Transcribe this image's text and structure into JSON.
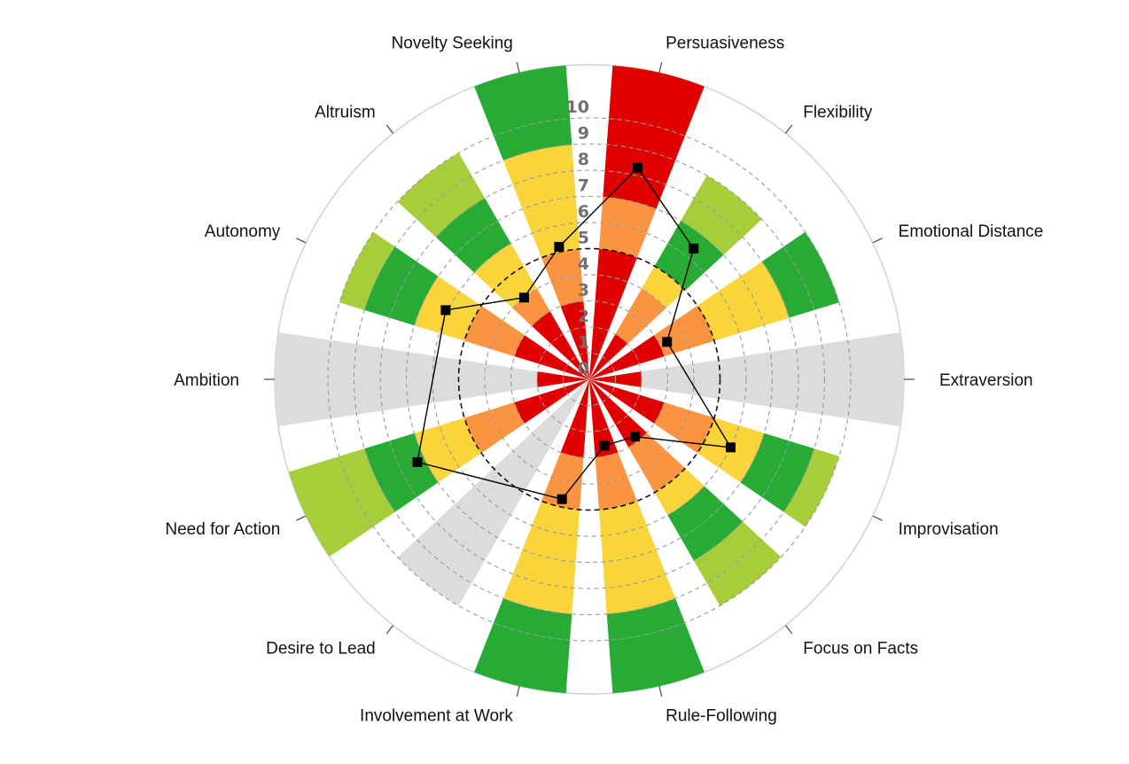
{
  "chart_data": {
    "type": "polar-bar",
    "title": "",
    "radial_axis": {
      "min": 0,
      "max": 10,
      "tick_labels": [
        "0",
        "1",
        "2",
        "3",
        "4",
        "5",
        "6",
        "7",
        "8",
        "9",
        "10"
      ],
      "reference_circle": 5,
      "grid": "dashed"
    },
    "band_colors": {
      "red": "#e00000",
      "orange": "#fa9440",
      "yellow": "#f9d43b",
      "green": "#27ab34",
      "lightgreen": "#a6cd3a",
      "gray": "#dcdcdc",
      "white": "#ffffff"
    },
    "categories": [
      {
        "name": "Persuasiveness",
        "value": 8.3,
        "bands": [
          "red",
          "red",
          "red",
          "red",
          "red",
          "orange",
          "orange",
          "red",
          "red",
          "red",
          "red"
        ]
      },
      {
        "name": "Flexibility",
        "value": 6.4,
        "bands": [
          "red",
          "red",
          "orange",
          "orange",
          "yellow",
          "green",
          "green",
          "lightgreen",
          "lightgreen",
          "white",
          "white"
        ]
      },
      {
        "name": "Emotional Distance",
        "value": 3.3,
        "bands": [
          "red",
          "red",
          "red",
          "orange",
          "orange",
          "yellow",
          "yellow",
          "yellow",
          "green",
          "green",
          "white"
        ]
      },
      {
        "name": "Extraversion",
        "value": 0,
        "bands": [
          "red",
          "red",
          "gray",
          "gray",
          "gray",
          "gray",
          "gray",
          "gray",
          "gray",
          "gray",
          "gray"
        ]
      },
      {
        "name": "Improvisation",
        "value": 6.0,
        "bands": [
          "red",
          "red",
          "red",
          "orange",
          "orange",
          "yellow",
          "yellow",
          "green",
          "green",
          "lightgreen",
          "white"
        ]
      },
      {
        "name": "Focus on Facts",
        "value": 2.8,
        "bands": [
          "red",
          "red",
          "red",
          "orange",
          "orange",
          "yellow",
          "green",
          "green",
          "lightgreen",
          "lightgreen",
          "white"
        ]
      },
      {
        "name": "Rule-Following",
        "value": 2.6,
        "bands": [
          "red",
          "red",
          "red",
          "orange",
          "orange",
          "yellow",
          "yellow",
          "yellow",
          "yellow",
          "green",
          "green"
        ]
      },
      {
        "name": "Involvement at Work",
        "value": 4.7,
        "bands": [
          "red",
          "red",
          "red",
          "orange",
          "orange",
          "yellow",
          "yellow",
          "yellow",
          "yellow",
          "green",
          "green"
        ]
      },
      {
        "name": "Desire to Lead",
        "value": 0,
        "bands": [
          "gray",
          "gray",
          "gray",
          "gray",
          "gray",
          "gray",
          "gray",
          "gray",
          "gray",
          "gray",
          "white"
        ]
      },
      {
        "name": "Need for Action",
        "value": 7.3,
        "bands": [
          "red",
          "red",
          "red",
          "orange",
          "orange",
          "yellow",
          "yellow",
          "green",
          "green",
          "lightgreen",
          "lightgreen"
        ]
      },
      {
        "name": "Ambition",
        "value": 0,
        "bands": [
          "red",
          "red",
          "gray",
          "gray",
          "gray",
          "gray",
          "gray",
          "gray",
          "gray",
          "gray",
          "gray"
        ]
      },
      {
        "name": "Autonomy",
        "value": 6.1,
        "bands": [
          "red",
          "red",
          "red",
          "orange",
          "orange",
          "yellow",
          "yellow",
          "green",
          "green",
          "lightgreen",
          "white"
        ]
      },
      {
        "name": "Altruism",
        "value": 4.0,
        "bands": [
          "red",
          "red",
          "red",
          "orange",
          "yellow",
          "yellow",
          "green",
          "green",
          "lightgreen",
          "lightgreen",
          "white"
        ]
      },
      {
        "name": "Novelty Seeking",
        "value": 5.2,
        "bands": [
          "red",
          "red",
          "red",
          "orange",
          "orange",
          "yellow",
          "yellow",
          "yellow",
          "yellow",
          "green",
          "green"
        ]
      }
    ],
    "line": {
      "color": "#000000",
      "marker": "square"
    }
  }
}
